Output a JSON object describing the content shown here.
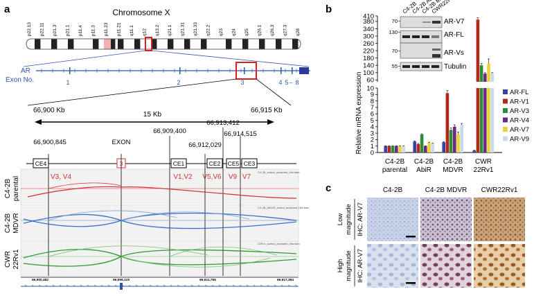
{
  "panel_a": {
    "label": "a",
    "chromosome_title": "Chromosome X",
    "bands": [
      "p22.13",
      "p22.11",
      "p21.3",
      "p21.1",
      "p11.4",
      "p11.3",
      "p11.23",
      "p11.21",
      "q11.1",
      "q12",
      "q13.2",
      "q21.1",
      "q21.31",
      "q21.33",
      "q22.2",
      "q23",
      "q24",
      "q25",
      "q26.1",
      "q26.3",
      "q27.3",
      "q28"
    ],
    "gene": "AR",
    "exon_label": "Exon No.",
    "exon_numbers": [
      "1",
      "2",
      "3",
      "4",
      "5",
      "–",
      "8"
    ],
    "range_left": "66,900 Kb",
    "range_right": "66,915 Kb",
    "scale": "15 Kb",
    "coords": [
      "66,900,845",
      "EXON",
      "66,909,400",
      "66,912,029",
      "66,913,412",
      "66,914,515"
    ],
    "boxes": [
      "CE4",
      "3",
      "CE1",
      "CE2",
      "CE5",
      "CE3"
    ],
    "variants": [
      "V3, V4",
      "V1,V2",
      "V5,V6",
      "V9",
      "V7"
    ],
    "rows": [
      {
        "name": "C4-2B parental",
        "line1": "C4-2B",
        "line2": "parental",
        "track": "C4-2B_sorted_accepted_hits.bam"
      },
      {
        "name": "C4-2B MDVR",
        "line1": "C4-2B",
        "line2": "MDVR",
        "track": "C4-2B_MDVR_sorted_accepted_hits.bam"
      },
      {
        "name": "CWR 22Rv1",
        "line1": "CWR",
        "line2": "22Rv1",
        "track": "22Rv1_sorted_accepted_hits.bam"
      }
    ],
    "axis_ticks": [
      "66,900,482",
      "66,906,119",
      "66,911,756",
      "66,917,394"
    ]
  },
  "panel_b": {
    "label": "b",
    "ylabel": "Relative mRNA expression",
    "blot_lanes": [
      "C4-2B",
      "C4-2B AbiR",
      "C4-2B MDVR",
      "CWR22Rv1"
    ],
    "blot_labels": [
      "AR-V7",
      "AR-FL",
      "AR-Vs",
      "Tubulin"
    ],
    "blot_markers": [
      "70",
      "130",
      "70",
      "55"
    ],
    "legend_colors": {
      "AR-FL": "#3b3fa8",
      "AR-V1": "#b02a1a",
      "AR-V3": "#2e8b3a",
      "AR-V4": "#6a2a86",
      "AR-V7": "#ecd23a",
      "AR-V9": "#c9dbe8"
    },
    "chart_data": {
      "type": "bar",
      "categories": [
        "C4-2B parental",
        "C4-2B AbiR",
        "C4-2B MDVR",
        "CWR 22Rv1"
      ],
      "category_lines": [
        [
          "C4-2B",
          "parental"
        ],
        [
          "C4-2B",
          "AbiR"
        ],
        [
          "C4-2B",
          "MDVR"
        ],
        [
          "CWR",
          "22Rv1"
        ]
      ],
      "series": [
        {
          "name": "AR-FL",
          "values": [
            1.0,
            1.7,
            1.6,
            0.3
          ],
          "err": [
            0.05,
            0.1,
            0.1,
            0.05
          ]
        },
        {
          "name": "AR-V1",
          "values": [
            1.0,
            1.3,
            9.2,
            390
          ],
          "err": [
            0.05,
            0.1,
            0.4,
            10
          ]
        },
        {
          "name": "AR-V3",
          "values": [
            1.0,
            2.8,
            3.5,
            140
          ],
          "err": [
            0.05,
            0.1,
            0.3,
            10
          ]
        },
        {
          "name": "AR-V4",
          "values": [
            1.0,
            1.0,
            4.0,
            95
          ],
          "err": [
            0.05,
            0.05,
            0.3,
            5
          ]
        },
        {
          "name": "AR-V7",
          "values": [
            1.0,
            1.5,
            2.8,
            150
          ],
          "err": [
            0.05,
            0.1,
            0.4,
            25
          ]
        },
        {
          "name": "AR-V9",
          "values": [
            1.0,
            1.4,
            4.3,
            95
          ],
          "err": [
            0.05,
            0.05,
            0.2,
            5
          ]
        }
      ],
      "y_ticks_lower": [
        0,
        1,
        2,
        3,
        4,
        5,
        6,
        7,
        8,
        9,
        10
      ],
      "y_ticks_upper": [
        60,
        100,
        140,
        180,
        220,
        260,
        300,
        340,
        380,
        410
      ],
      "ylim_lower": [
        0,
        10
      ],
      "ylim_upper": [
        50,
        410
      ],
      "legend": "right"
    }
  },
  "panel_c": {
    "label": "c",
    "columns": [
      "C4-2B",
      "C4-2B MDVR",
      "CWR22Rv1"
    ],
    "rows": [
      {
        "mag1": "Low",
        "mag2": "magnitude",
        "stain": "IHC: AR-V7"
      },
      {
        "mag1": "High",
        "mag2": "magnitude",
        "stain": "IHC: AR-V7"
      }
    ]
  }
}
